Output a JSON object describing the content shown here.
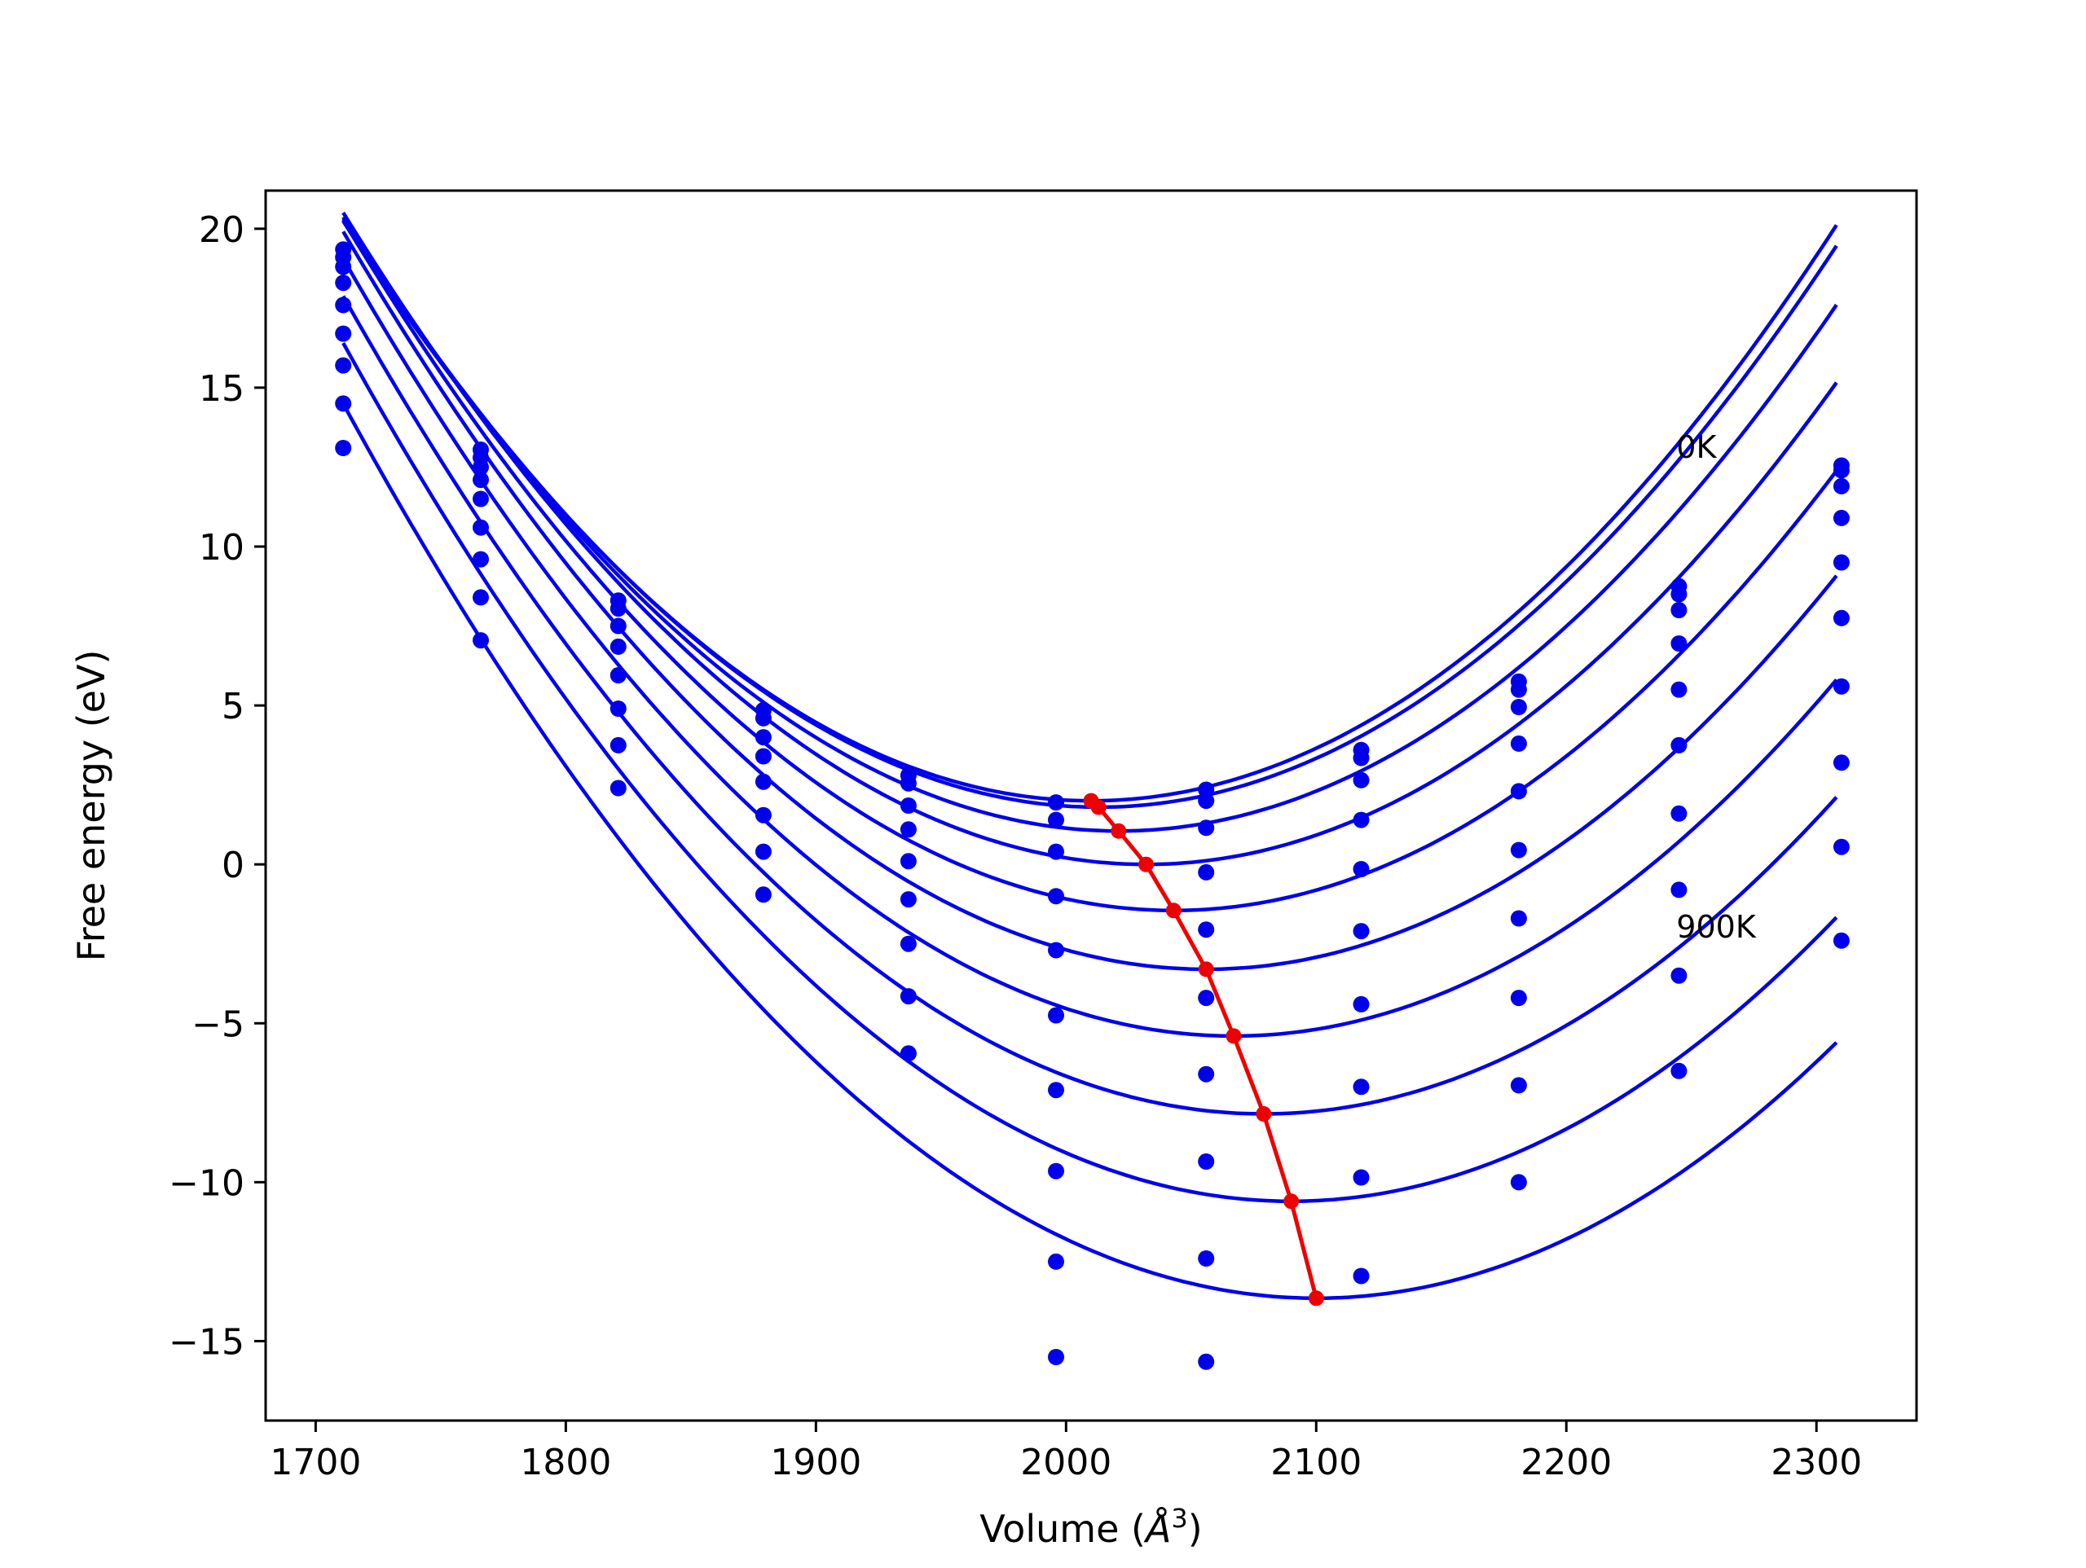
{
  "chart_data": {
    "type": "line",
    "title": "",
    "xlabel_main": "Volume (",
    "xlabel_unit": "Å",
    "xlabel_sup": "3",
    "xlabel_close": ")",
    "ylabel": "Free energy (eV)",
    "xlim": [
      1680,
      2340
    ],
    "ylim": [
      -17.5,
      21.2
    ],
    "xticks": [
      1700,
      1800,
      1900,
      2000,
      2100,
      2200,
      2300
    ],
    "yticks": [
      -15,
      -10,
      -5,
      0,
      5,
      10,
      15,
      20
    ],
    "xtick_labels": [
      "1700",
      "1800",
      "1900",
      "2000",
      "2100",
      "2200",
      "2300"
    ],
    "ytick_labels": [
      "−15",
      "−10",
      "−5",
      "0",
      "5",
      "10",
      "15",
      "20"
    ],
    "grid": false,
    "colors": {
      "curves": "#0000ee",
      "points": "#0000ee",
      "minimum_line": "#ee0000"
    },
    "annotations": [
      {
        "text": "0K",
        "x": 2244,
        "y": 12.8
      },
      {
        "text": "900K",
        "x": 2244,
        "y": -2.3
      }
    ],
    "volumes": [
      1711,
      1766,
      1821,
      1879,
      1937,
      1996,
      2056,
      2118,
      2181,
      2245,
      2310
    ],
    "fits": [
      {
        "a": 0.000204,
        "b": 2.0,
        "c": 2010
      },
      {
        "a": 0.000203,
        "b": 1.8,
        "c": 2013
      },
      {
        "a": 0.000201,
        "b": 1.05,
        "c": 2021
      },
      {
        "a": 0.000199,
        "b": 0.0,
        "c": 2032
      },
      {
        "a": 0.000197,
        "b": -1.45,
        "c": 2043
      },
      {
        "a": 0.000195,
        "b": -3.3,
        "c": 2056
      },
      {
        "a": 0.000193,
        "b": -5.4,
        "c": 2067
      },
      {
        "a": 0.00019,
        "b": -7.85,
        "c": 2079
      },
      {
        "a": 0.000188,
        "b": -10.6,
        "c": 2090
      },
      {
        "a": 0.000186,
        "b": -13.65,
        "c": 2100
      }
    ],
    "scatter_points": [
      [
        1711,
        19.35
      ],
      [
        1711,
        19.1
      ],
      [
        1711,
        18.8
      ],
      [
        1711,
        18.3
      ],
      [
        1711,
        17.6
      ],
      [
        1711,
        16.7
      ],
      [
        1711,
        15.7
      ],
      [
        1711,
        14.5
      ],
      [
        1711,
        13.1
      ],
      [
        1766,
        13.05
      ],
      [
        1766,
        12.8
      ],
      [
        1766,
        12.5
      ],
      [
        1766,
        12.1
      ],
      [
        1766,
        11.5
      ],
      [
        1766,
        10.6
      ],
      [
        1766,
        9.6
      ],
      [
        1766,
        8.4
      ],
      [
        1766,
        7.05
      ],
      [
        1821,
        8.3
      ],
      [
        1821,
        8.05
      ],
      [
        1821,
        7.5
      ],
      [
        1821,
        6.85
      ],
      [
        1821,
        5.95
      ],
      [
        1821,
        4.9
      ],
      [
        1821,
        3.75
      ],
      [
        1821,
        2.4
      ],
      [
        1879,
        4.85
      ],
      [
        1879,
        4.6
      ],
      [
        1879,
        4.0
      ],
      [
        1879,
        3.4
      ],
      [
        1879,
        2.6
      ],
      [
        1879,
        1.55
      ],
      [
        1879,
        0.4
      ],
      [
        1879,
        -0.95
      ],
      [
        1937,
        2.8
      ],
      [
        1937,
        2.55
      ],
      [
        1937,
        1.85
      ],
      [
        1937,
        1.1
      ],
      [
        1937,
        0.1
      ],
      [
        1937,
        -1.1
      ],
      [
        1937,
        -2.5
      ],
      [
        1937,
        -4.15
      ],
      [
        1937,
        -5.95
      ],
      [
        1996,
        1.95
      ],
      [
        1996,
        1.4
      ],
      [
        1996,
        0.4
      ],
      [
        1996,
        -1.0
      ],
      [
        1996,
        -2.7
      ],
      [
        1996,
        -4.75
      ],
      [
        1996,
        -7.1
      ],
      [
        1996,
        -9.65
      ],
      [
        1996,
        -12.5
      ],
      [
        1996,
        -15.5
      ],
      [
        2056,
        2.35
      ],
      [
        2056,
        2.0
      ],
      [
        2056,
        1.15
      ],
      [
        2056,
        -0.25
      ],
      [
        2056,
        -2.05
      ],
      [
        2056,
        -4.2
      ],
      [
        2056,
        -6.6
      ],
      [
        2056,
        -9.35
      ],
      [
        2056,
        -12.4
      ],
      [
        2056,
        -15.65
      ],
      [
        2118,
        3.6
      ],
      [
        2118,
        3.35
      ],
      [
        2118,
        2.65
      ],
      [
        2118,
        1.4
      ],
      [
        2118,
        -0.15
      ],
      [
        2118,
        -2.1
      ],
      [
        2118,
        -4.4
      ],
      [
        2118,
        -7.0
      ],
      [
        2118,
        -9.85
      ],
      [
        2118,
        -12.95
      ],
      [
        2181,
        5.75
      ],
      [
        2181,
        5.5
      ],
      [
        2181,
        4.95
      ],
      [
        2181,
        3.8
      ],
      [
        2181,
        2.3
      ],
      [
        2181,
        0.45
      ],
      [
        2181,
        -1.7
      ],
      [
        2181,
        -4.2
      ],
      [
        2181,
        -6.95
      ],
      [
        2181,
        -10.0
      ],
      [
        2245,
        8.75
      ],
      [
        2245,
        8.5
      ],
      [
        2245,
        8.0
      ],
      [
        2245,
        6.95
      ],
      [
        2245,
        5.5
      ],
      [
        2245,
        3.75
      ],
      [
        2245,
        1.6
      ],
      [
        2245,
        -0.8
      ],
      [
        2245,
        -3.5
      ],
      [
        2245,
        -6.5
      ],
      [
        2310,
        12.55
      ],
      [
        2310,
        12.4
      ],
      [
        2310,
        11.9
      ],
      [
        2310,
        10.9
      ],
      [
        2310,
        9.5
      ],
      [
        2310,
        7.75
      ],
      [
        2310,
        5.6
      ],
      [
        2310,
        3.2
      ],
      [
        2310,
        0.55
      ],
      [
        2310,
        -2.4
      ]
    ],
    "minimum_line": [
      [
        2010,
        2.0
      ],
      [
        2013,
        1.8
      ],
      [
        2021,
        1.05
      ],
      [
        2032,
        0.0
      ],
      [
        2043,
        -1.45
      ],
      [
        2056,
        -3.3
      ],
      [
        2067,
        -5.4
      ],
      [
        2079,
        -7.85
      ],
      [
        2090,
        -10.6
      ],
      [
        2100,
        -13.65
      ]
    ]
  }
}
